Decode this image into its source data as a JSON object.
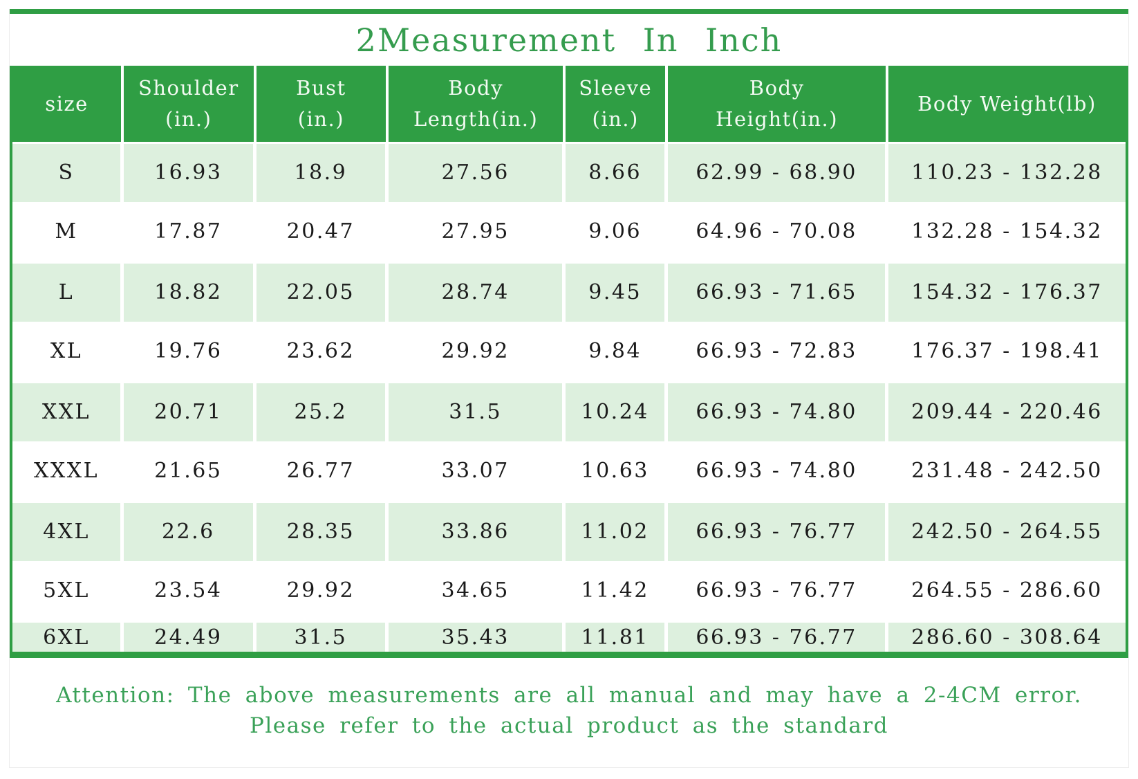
{
  "title": "2Measurement In Inch",
  "chart_data": {
    "type": "table",
    "title": "2Measurement In Inch",
    "columns": [
      "size",
      "Shoulder\n(in.)",
      "Bust\n(in.)",
      "Body\nLength(in.)",
      "Sleeve\n(in.)",
      "Body\nHeight(in.)",
      "Body Weight(lb)"
    ],
    "rows": [
      [
        "S",
        "16.93",
        "18.9",
        "27.56",
        "8.66",
        "62.99 - 68.90",
        "110.23 - 132.28"
      ],
      [
        "M",
        "17.87",
        "20.47",
        "27.95",
        "9.06",
        "64.96 - 70.08",
        "132.28 - 154.32"
      ],
      [
        "L",
        "18.82",
        "22.05",
        "28.74",
        "9.45",
        "66.93 - 71.65",
        "154.32 - 176.37"
      ],
      [
        "XL",
        "19.76",
        "23.62",
        "29.92",
        "9.84",
        "66.93 - 72.83",
        "176.37 - 198.41"
      ],
      [
        "XXL",
        "20.71",
        "25.2",
        "31.5",
        "10.24",
        "66.93 - 74.80",
        "209.44 - 220.46"
      ],
      [
        "XXXL",
        "21.65",
        "26.77",
        "33.07",
        "10.63",
        "66.93 - 74.80",
        "231.48 - 242.50"
      ],
      [
        "4XL",
        "22.6",
        "28.35",
        "33.86",
        "11.02",
        "66.93 - 76.77",
        "242.50 - 264.55"
      ],
      [
        "5XL",
        "23.54",
        "29.92",
        "34.65",
        "11.42",
        "66.93 - 76.77",
        "264.55 - 286.60"
      ],
      [
        "6XL",
        "24.49",
        "31.5",
        "35.43",
        "11.81",
        "66.93 - 76.77",
        "286.60 - 308.64"
      ]
    ],
    "layout_hints": {
      "header_style": "green background, white text",
      "row_striping": "odd rows light green, even rows white",
      "grid": "white gutter lines between columns"
    }
  },
  "footer": {
    "line1": "Attention: The above measurements are all manual and may have a 2-4CM error.",
    "line2": "Please refer to the actual product as the standard"
  },
  "colors": {
    "accent_green": "#2f9e44",
    "row_light_green": "#ddf0de",
    "title_green": "#359c4e",
    "footer_green": "#3aa158",
    "cell_text": "#1b1b1b",
    "header_text": "#f2faf2"
  }
}
